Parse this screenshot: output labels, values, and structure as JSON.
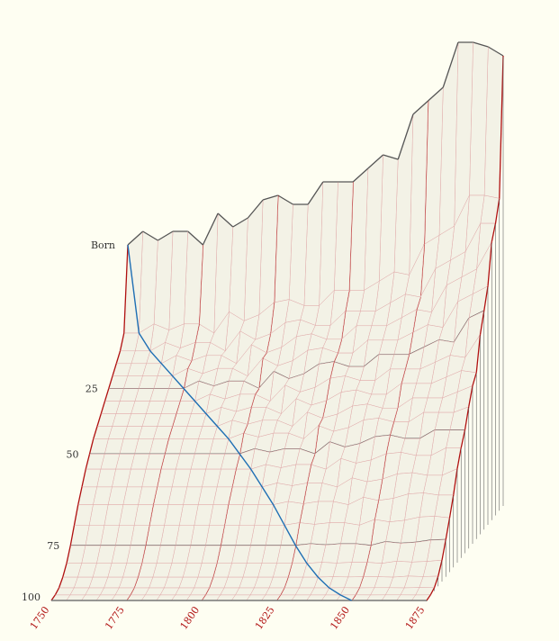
{
  "chart_data": {
    "type": "surface-3d",
    "title": "",
    "x_axis": {
      "label": "",
      "range": [
        1750,
        1875
      ],
      "tick_labels": [
        "1750",
        "1775",
        "1800",
        "1825",
        "1850",
        "1875"
      ]
    },
    "y_axis": {
      "label": "",
      "range": [
        0,
        100
      ],
      "tick_labels": [
        "Born",
        "25",
        "50",
        "75",
        "100"
      ]
    },
    "years": [
      1750,
      1755,
      1760,
      1765,
      1770,
      1775,
      1780,
      1785,
      1790,
      1795,
      1800,
      1805,
      1810,
      1815,
      1820,
      1825,
      1830,
      1835,
      1840,
      1845,
      1850,
      1855,
      1860,
      1865,
      1870,
      1875
    ],
    "births_relative": [
      58,
      61,
      59,
      61,
      61,
      58,
      65,
      62,
      64,
      68,
      69,
      67,
      67,
      72,
      72,
      72,
      75,
      78,
      77,
      87,
      90,
      93,
      103,
      103,
      102,
      100
    ],
    "ages": [
      0,
      5,
      10,
      15,
      20,
      25,
      30,
      35,
      40,
      45,
      50,
      55,
      60,
      65,
      70,
      75,
      80,
      85,
      90,
      95,
      100
    ],
    "survival_fraction": [
      1,
      0.68,
      0.63,
      0.6,
      0.57,
      0.54,
      0.51,
      0.48,
      0.45,
      0.42,
      0.38,
      0.34,
      0.29,
      0.24,
      0.18,
      0.12,
      0.07,
      0.035,
      0.012,
      0.003,
      0
    ],
    "highlighted_cohort_birth_year": 1750,
    "colors": {
      "surface": "#f3f2e6",
      "grid": "#e0a8a8",
      "year_lines": "#b01010",
      "age_contours": "#555555",
      "cohort_line": "#1f6fb4",
      "background": "#fefef2"
    }
  }
}
